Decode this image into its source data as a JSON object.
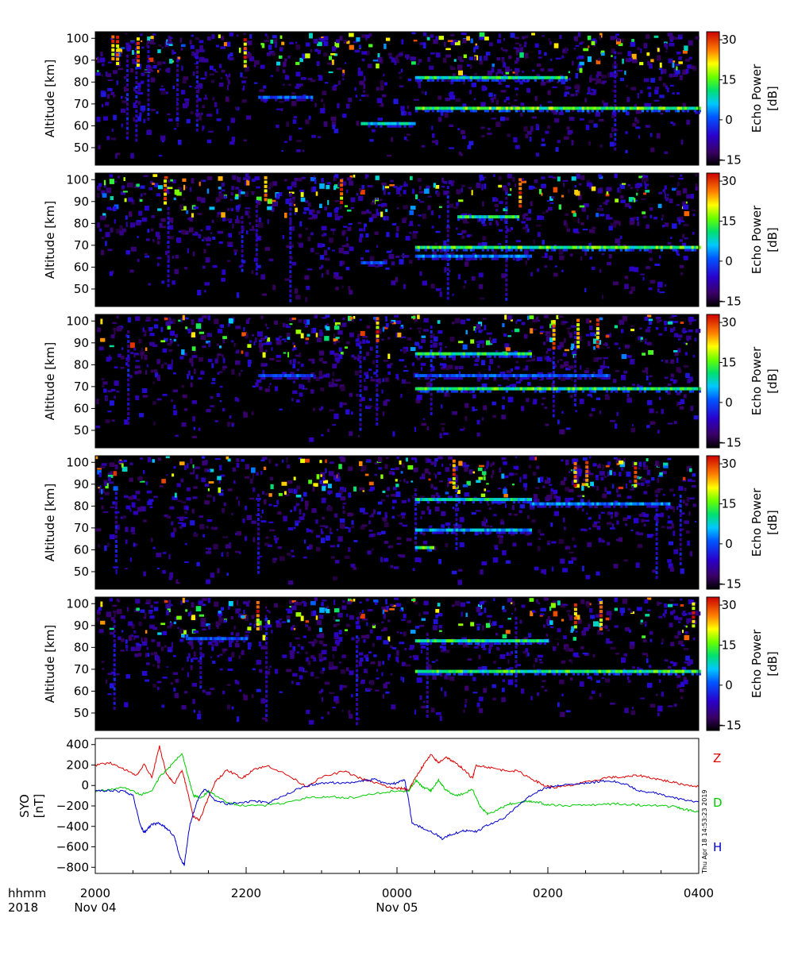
{
  "chart_data": [
    {
      "type": "heatmap",
      "ylabel": "Altitude [km]",
      "yticks": [
        50,
        60,
        70,
        80,
        90,
        100
      ],
      "ylim": [
        42,
        103
      ],
      "colorbar": {
        "label_line1": "Echo Power",
        "label_line2": "[dB]",
        "ticks": [
          -15,
          0,
          15,
          30
        ],
        "range": [
          -17,
          33
        ]
      },
      "layers": [
        {
          "alt": 82,
          "x0": 0.53,
          "x1": 0.78,
          "intensity": 0.55
        },
        {
          "alt": 68,
          "x0": 0.53,
          "x1": 1.0,
          "intensity": 0.62
        },
        {
          "alt": 61,
          "x0": 0.44,
          "x1": 0.53,
          "intensity": 0.5
        },
        {
          "alt": 73,
          "x0": 0.27,
          "x1": 0.36,
          "intensity": 0.35
        }
      ]
    },
    {
      "type": "heatmap",
      "ylabel": "Altitude [km]",
      "yticks": [
        50,
        60,
        70,
        80,
        90,
        100
      ],
      "ylim": [
        42,
        103
      ],
      "colorbar": {
        "label_line1": "Echo Power",
        "label_line2": "[dB]",
        "ticks": [
          -15,
          0,
          15,
          30
        ],
        "range": [
          -17,
          33
        ]
      },
      "layers": [
        {
          "alt": 83,
          "x0": 0.6,
          "x1": 0.7,
          "intensity": 0.55
        },
        {
          "alt": 69,
          "x0": 0.53,
          "x1": 1.0,
          "intensity": 0.6
        },
        {
          "alt": 65,
          "x0": 0.53,
          "x1": 0.72,
          "intensity": 0.4
        },
        {
          "alt": 62,
          "x0": 0.44,
          "x1": 0.48,
          "intensity": 0.35
        }
      ]
    },
    {
      "type": "heatmap",
      "ylabel": "Altitude [km]",
      "yticks": [
        50,
        60,
        70,
        80,
        90,
        100
      ],
      "ylim": [
        42,
        103
      ],
      "colorbar": {
        "label_line1": "Echo Power",
        "label_line2": "[dB]",
        "ticks": [
          -15,
          0,
          15,
          30
        ],
        "range": [
          -17,
          33
        ]
      },
      "layers": [
        {
          "alt": 85,
          "x0": 0.53,
          "x1": 0.72,
          "intensity": 0.55
        },
        {
          "alt": 75,
          "x0": 0.27,
          "x1": 0.36,
          "intensity": 0.35
        },
        {
          "alt": 75,
          "x0": 0.53,
          "x1": 0.85,
          "intensity": 0.35
        },
        {
          "alt": 69,
          "x0": 0.53,
          "x1": 1.0,
          "intensity": 0.58
        }
      ]
    },
    {
      "type": "heatmap",
      "ylabel": "Altitude [km]",
      "yticks": [
        50,
        60,
        70,
        80,
        90,
        100
      ],
      "ylim": [
        42,
        103
      ],
      "colorbar": {
        "label_line1": "Echo Power",
        "label_line2": "[dB]",
        "ticks": [
          -15,
          0,
          15,
          30
        ],
        "range": [
          -17,
          33
        ]
      },
      "layers": [
        {
          "alt": 83,
          "x0": 0.53,
          "x1": 0.72,
          "intensity": 0.55
        },
        {
          "alt": 81,
          "x0": 0.72,
          "x1": 0.95,
          "intensity": 0.4
        },
        {
          "alt": 69,
          "x0": 0.53,
          "x1": 0.72,
          "intensity": 0.45
        },
        {
          "alt": 61,
          "x0": 0.53,
          "x1": 0.56,
          "intensity": 0.6
        }
      ]
    },
    {
      "type": "heatmap",
      "ylabel": "Altitude [km]",
      "yticks": [
        50,
        60,
        70,
        80,
        90,
        100
      ],
      "ylim": [
        42,
        103
      ],
      "colorbar": {
        "label_line1": "Echo Power",
        "label_line2": "[dB]",
        "ticks": [
          -15,
          0,
          15,
          30
        ],
        "range": [
          -17,
          33
        ]
      },
      "layers": [
        {
          "alt": 83,
          "x0": 0.53,
          "x1": 0.75,
          "intensity": 0.55
        },
        {
          "alt": 69,
          "x0": 0.53,
          "x1": 1.0,
          "intensity": 0.58
        },
        {
          "alt": 84,
          "x0": 0.15,
          "x1": 0.25,
          "intensity": 0.35
        }
      ]
    },
    {
      "type": "line",
      "ylabel_line1": "SYO",
      "ylabel_line2": "[nT]",
      "yticks": [
        400,
        200,
        0,
        -200,
        -400,
        -600,
        -800
      ],
      "ylim": [
        -860,
        460
      ],
      "xlim_hours": [
        20,
        28
      ],
      "series": [
        {
          "name": "Z",
          "color": "#dd0000",
          "points": [
            [
              20.0,
              200
            ],
            [
              20.2,
              220
            ],
            [
              20.4,
              150
            ],
            [
              20.55,
              100
            ],
            [
              20.65,
              210
            ],
            [
              20.75,
              80
            ],
            [
              20.85,
              380
            ],
            [
              20.95,
              100
            ],
            [
              21.05,
              20
            ],
            [
              21.15,
              150
            ],
            [
              21.22,
              -50
            ],
            [
              21.3,
              -300
            ],
            [
              21.38,
              -340
            ],
            [
              21.5,
              -120
            ],
            [
              21.6,
              50
            ],
            [
              21.75,
              150
            ],
            [
              21.95,
              70
            ],
            [
              22.1,
              160
            ],
            [
              22.3,
              190
            ],
            [
              22.55,
              100
            ],
            [
              22.8,
              -10
            ],
            [
              23.0,
              80
            ],
            [
              23.3,
              140
            ],
            [
              23.55,
              60
            ],
            [
              23.75,
              20
            ],
            [
              23.9,
              -20
            ],
            [
              24.0,
              -30
            ],
            [
              24.1,
              -30
            ],
            [
              24.15,
              -50
            ],
            [
              24.25,
              80
            ],
            [
              24.35,
              200
            ],
            [
              24.45,
              300
            ],
            [
              24.55,
              220
            ],
            [
              24.65,
              280
            ],
            [
              24.75,
              230
            ],
            [
              24.85,
              180
            ],
            [
              25.0,
              70
            ],
            [
              25.05,
              200
            ],
            [
              25.2,
              180
            ],
            [
              25.4,
              150
            ],
            [
              25.6,
              140
            ],
            [
              25.8,
              60
            ],
            [
              25.95,
              0
            ],
            [
              26.1,
              -20
            ],
            [
              26.3,
              0
            ],
            [
              26.5,
              30
            ],
            [
              26.8,
              80
            ],
            [
              27.0,
              80
            ],
            [
              27.2,
              100
            ],
            [
              27.4,
              70
            ],
            [
              27.6,
              40
            ],
            [
              27.8,
              10
            ],
            [
              28.0,
              -10
            ]
          ]
        },
        {
          "name": "D",
          "color": "#00cc00",
          "points": [
            [
              20.0,
              -60
            ],
            [
              20.2,
              -40
            ],
            [
              20.4,
              -20
            ],
            [
              20.6,
              -90
            ],
            [
              20.75,
              -50
            ],
            [
              20.85,
              80
            ],
            [
              20.95,
              150
            ],
            [
              21.05,
              240
            ],
            [
              21.15,
              310
            ],
            [
              21.22,
              120
            ],
            [
              21.3,
              -100
            ],
            [
              21.4,
              -120
            ],
            [
              21.5,
              -60
            ],
            [
              21.6,
              -100
            ],
            [
              21.75,
              -170
            ],
            [
              21.9,
              -190
            ],
            [
              22.2,
              -200
            ],
            [
              22.5,
              -170
            ],
            [
              22.8,
              -120
            ],
            [
              23.1,
              -110
            ],
            [
              23.4,
              -120
            ],
            [
              23.7,
              -80
            ],
            [
              24.0,
              -50
            ],
            [
              24.15,
              -60
            ],
            [
              24.25,
              50
            ],
            [
              24.35,
              -20
            ],
            [
              24.45,
              -50
            ],
            [
              24.55,
              50
            ],
            [
              24.65,
              -50
            ],
            [
              24.8,
              -100
            ],
            [
              25.0,
              -40
            ],
            [
              25.1,
              -200
            ],
            [
              25.2,
              -280
            ],
            [
              25.35,
              -230
            ],
            [
              25.5,
              -180
            ],
            [
              25.7,
              -150
            ],
            [
              25.85,
              -160
            ],
            [
              26.0,
              -190
            ],
            [
              26.3,
              -200
            ],
            [
              26.6,
              -190
            ],
            [
              26.9,
              -180
            ],
            [
              27.2,
              -190
            ],
            [
              27.5,
              -200
            ],
            [
              27.7,
              -210
            ],
            [
              27.85,
              -240
            ],
            [
              28.0,
              -260
            ]
          ]
        },
        {
          "name": "H",
          "color": "#0000cc",
          "points": [
            [
              20.0,
              -50
            ],
            [
              20.2,
              -50
            ],
            [
              20.4,
              -60
            ],
            [
              20.5,
              -100
            ],
            [
              20.6,
              -400
            ],
            [
              20.65,
              -460
            ],
            [
              20.75,
              -380
            ],
            [
              20.85,
              -370
            ],
            [
              20.95,
              -420
            ],
            [
              21.05,
              -500
            ],
            [
              21.12,
              -700
            ],
            [
              21.18,
              -780
            ],
            [
              21.25,
              -400
            ],
            [
              21.35,
              -150
            ],
            [
              21.45,
              -30
            ],
            [
              21.6,
              -150
            ],
            [
              21.75,
              -180
            ],
            [
              21.9,
              -170
            ],
            [
              22.1,
              -150
            ],
            [
              22.3,
              -170
            ],
            [
              22.5,
              -100
            ],
            [
              22.7,
              -30
            ],
            [
              22.9,
              10
            ],
            [
              23.1,
              30
            ],
            [
              23.3,
              20
            ],
            [
              23.5,
              40
            ],
            [
              23.7,
              60
            ],
            [
              23.85,
              20
            ],
            [
              24.0,
              20
            ],
            [
              24.1,
              60
            ],
            [
              24.15,
              -130
            ],
            [
              24.2,
              -370
            ],
            [
              24.35,
              -420
            ],
            [
              24.5,
              -470
            ],
            [
              24.6,
              -520
            ],
            [
              24.75,
              -470
            ],
            [
              24.9,
              -440
            ],
            [
              25.05,
              -450
            ],
            [
              25.2,
              -390
            ],
            [
              25.4,
              -330
            ],
            [
              25.6,
              -200
            ],
            [
              25.8,
              -80
            ],
            [
              25.95,
              -30
            ],
            [
              26.15,
              0
            ],
            [
              26.4,
              20
            ],
            [
              26.6,
              30
            ],
            [
              26.8,
              50
            ],
            [
              27.0,
              20
            ],
            [
              27.2,
              -50
            ],
            [
              27.4,
              -70
            ],
            [
              27.6,
              -110
            ],
            [
              27.8,
              -140
            ],
            [
              28.0,
              -160
            ]
          ]
        }
      ]
    }
  ],
  "x_axis": {
    "row_label_top": "hhmm",
    "row_label_bottom": "2018",
    "ticks": [
      {
        "label": "2000",
        "date": "Nov 04"
      },
      {
        "label": "2200",
        "date": ""
      },
      {
        "label": "0000",
        "date": "Nov 05"
      },
      {
        "label": "0200",
        "date": ""
      },
      {
        "label": "0400",
        "date": ""
      }
    ]
  },
  "timestamp": "Thu Apr 18 14:53:23 2019"
}
